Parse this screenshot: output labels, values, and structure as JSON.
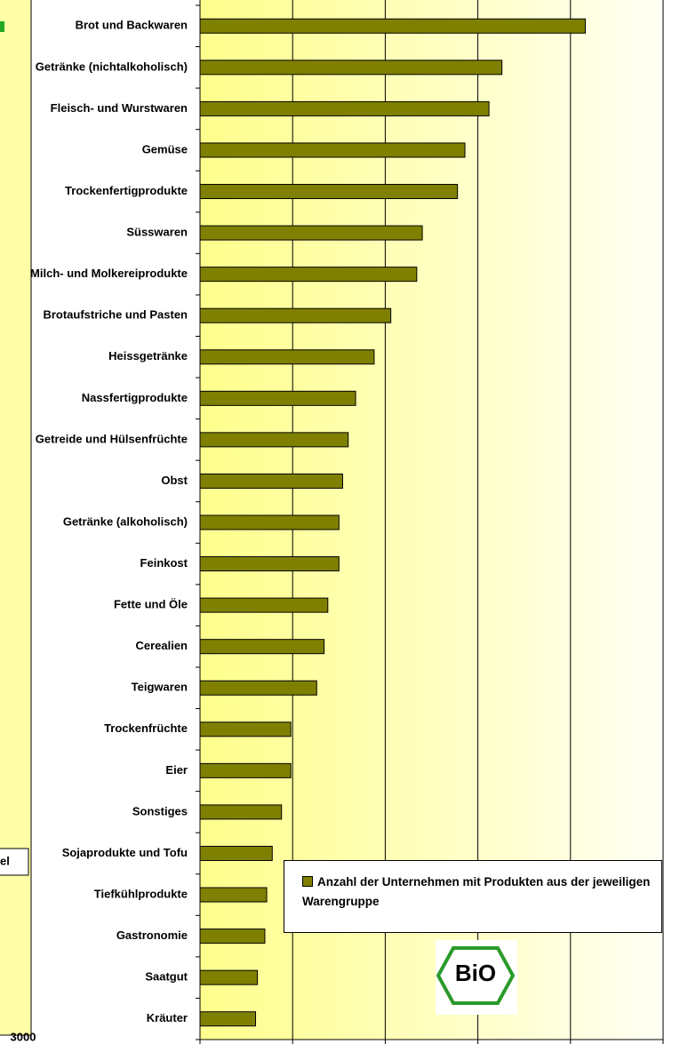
{
  "chart_data": {
    "type": "barh",
    "categories": [
      "Brot und Backwaren",
      "Getränke (nichtalkoholisch)",
      "Fleisch- und Wurstwaren",
      "Gemüse",
      "Trockenfertigprodukte",
      "Süsswaren",
      "Milch- und Molkereiprodukte",
      "Brotaufstriche und Pasten",
      "Heissgetränke",
      "Nassfertigprodukte",
      "Getreide und Hülsenfrüchte",
      "Obst",
      "Getränke (alkoholisch)",
      "Feinkost",
      "Fette und Öle",
      "Cerealien",
      "Teigwaren",
      "Trockenfrüchte",
      "Eier",
      "Sonstiges",
      "Sojaprodukte und Tofu",
      "Tiefkühlprodukte",
      "Gastronomie",
      "Saatgut",
      "Kräuter"
    ],
    "series": [
      {
        "name": "Anzahl der Unternehmen mit Produkten aus der jeweiligen Warengruppe",
        "color": "#808000",
        "values": [
          208,
          163,
          156,
          143,
          139,
          120,
          117,
          103,
          94,
          84,
          80,
          77,
          75,
          75,
          69,
          67,
          63,
          49,
          49,
          44,
          39,
          36,
          35,
          31,
          30
        ]
      }
    ],
    "xlim": [
      0,
      250
    ],
    "xticks": [
      0,
      50,
      100,
      150,
      200,
      250
    ],
    "grid": true,
    "legend": "lower right",
    "logo": "BiO"
  },
  "fragment": {
    "tick": "3000",
    "legend": "el"
  }
}
